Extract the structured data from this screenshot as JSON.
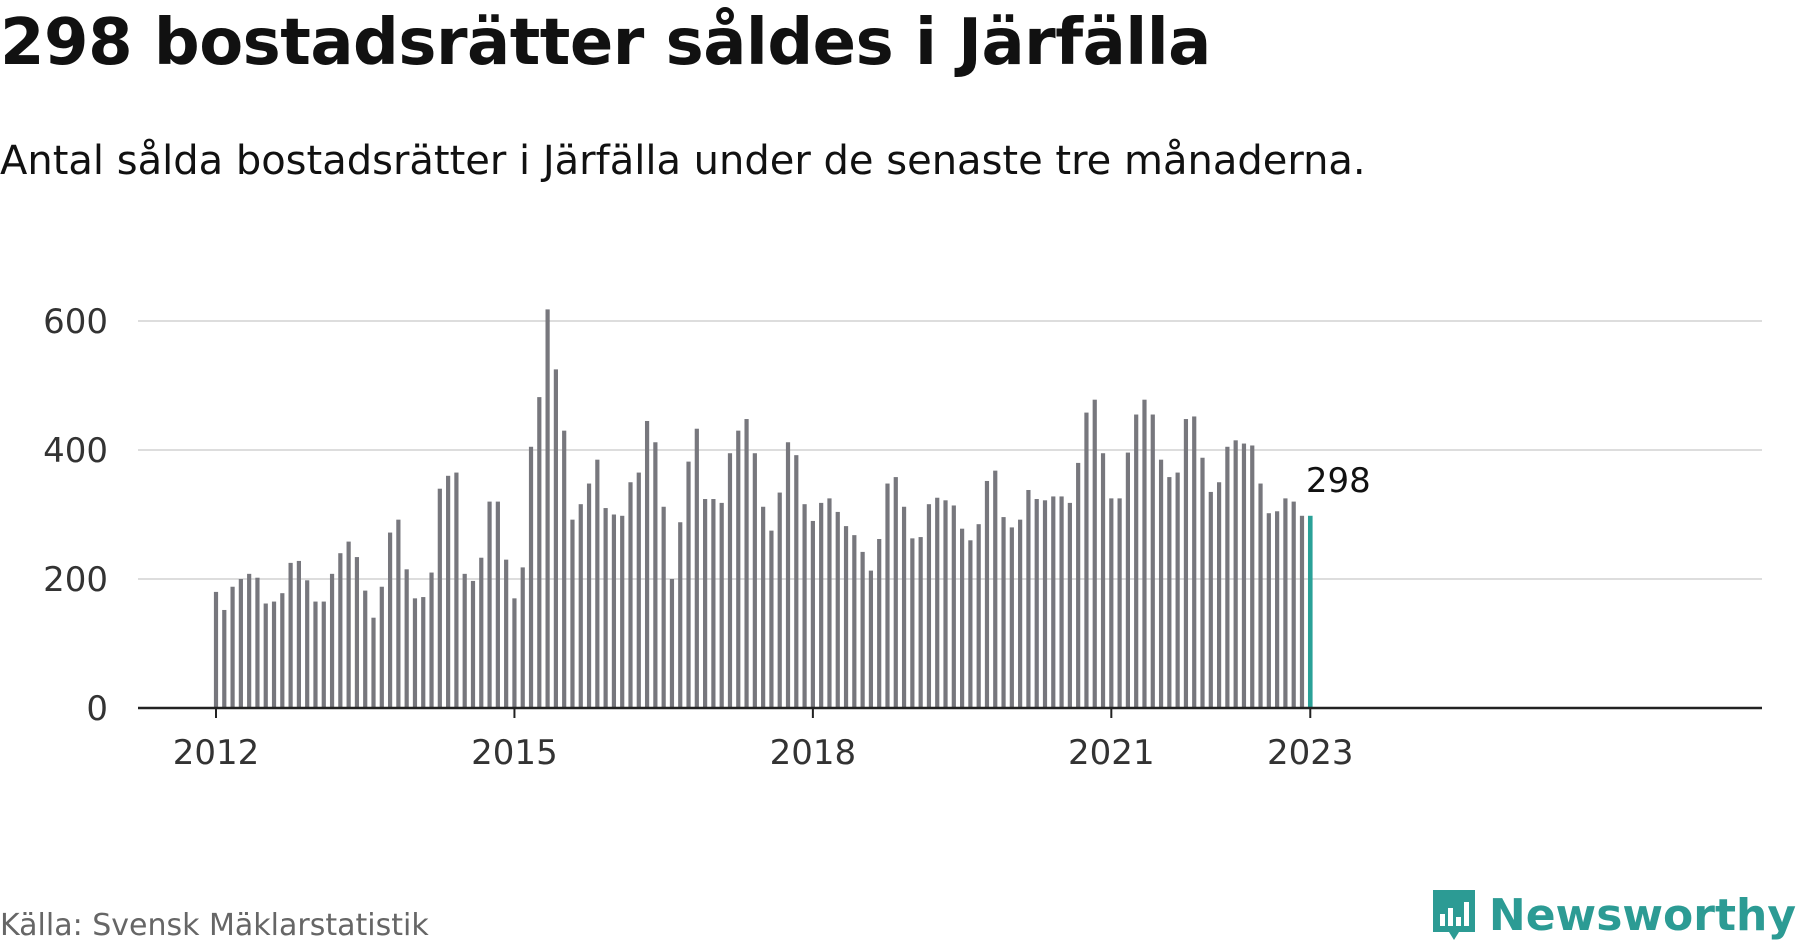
{
  "title": "298 bostadsrätter såldes i Järfälla",
  "subtitle": "Antal sålda bostadsrätter i Järfälla under de senaste tre månaderna.",
  "source": "Källa: Svensk Mäklarstatistik",
  "brand": "Newsworthy",
  "colors": {
    "bar": "#77777d",
    "highlight": "#2aa198",
    "grid": "#dddddd",
    "axis": "#222222",
    "brand": "#2c9b94"
  },
  "chart_data": {
    "type": "bar",
    "start": "2012-01",
    "x_ticks": [
      "2012",
      "2015",
      "2018",
      "2021",
      "2023"
    ],
    "y_ticks": [
      0,
      200,
      400,
      600
    ],
    "ylim": [
      0,
      640
    ],
    "grid": true,
    "highlight_label": "298",
    "values": [
      180,
      152,
      188,
      200,
      208,
      202,
      162,
      165,
      178,
      225,
      228,
      198,
      165,
      165,
      208,
      240,
      258,
      234,
      182,
      140,
      188,
      272,
      292,
      215,
      170,
      172,
      210,
      340,
      360,
      365,
      208,
      197,
      233,
      320,
      320,
      230,
      170,
      218,
      405,
      482,
      618,
      525,
      430,
      292,
      316,
      348,
      385,
      310,
      300,
      298,
      350,
      365,
      445,
      412,
      312,
      200,
      288,
      382,
      433,
      324,
      324,
      318,
      395,
      430,
      448,
      395,
      312,
      275,
      334,
      412,
      392,
      316,
      290,
      318,
      325,
      304,
      282,
      268,
      242,
      213,
      262,
      348,
      358,
      312,
      263,
      265,
      316,
      326,
      322,
      314,
      278,
      260,
      285,
      352,
      368,
      296,
      280,
      292,
      338,
      324,
      322,
      328,
      328,
      318,
      380,
      458,
      478,
      395,
      325,
      325,
      396,
      455,
      478,
      455,
      385,
      358,
      365,
      448,
      452,
      388,
      335,
      350,
      405,
      415,
      410,
      407,
      348,
      302,
      305,
      325,
      320,
      298,
      298
    ]
  }
}
